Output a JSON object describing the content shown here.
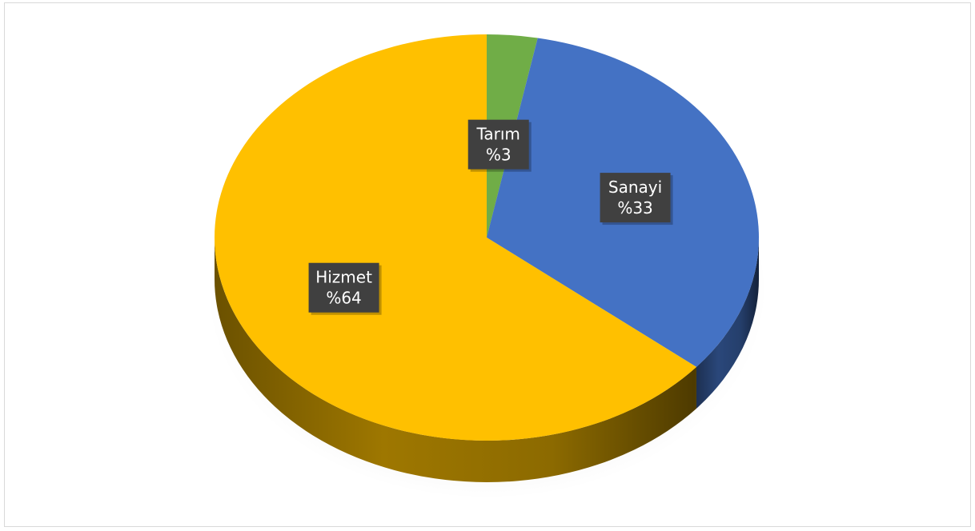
{
  "chart_data": {
    "type": "pie",
    "style": "3d",
    "title": "",
    "categories": [
      "Tarım",
      "Sanayi",
      "Hizmet"
    ],
    "values": [
      3,
      33,
      64
    ],
    "labels": [
      {
        "name": "Tarım",
        "value_text": "%3"
      },
      {
        "name": "Sanayi",
        "value_text": "%33"
      },
      {
        "name": "Hizmet",
        "value_text": "%64"
      }
    ],
    "colors": [
      "#70ad47",
      "#4472c4",
      "#ffc000"
    ],
    "label_background": "#404040",
    "label_color": "#ffffff",
    "legend": "none"
  }
}
